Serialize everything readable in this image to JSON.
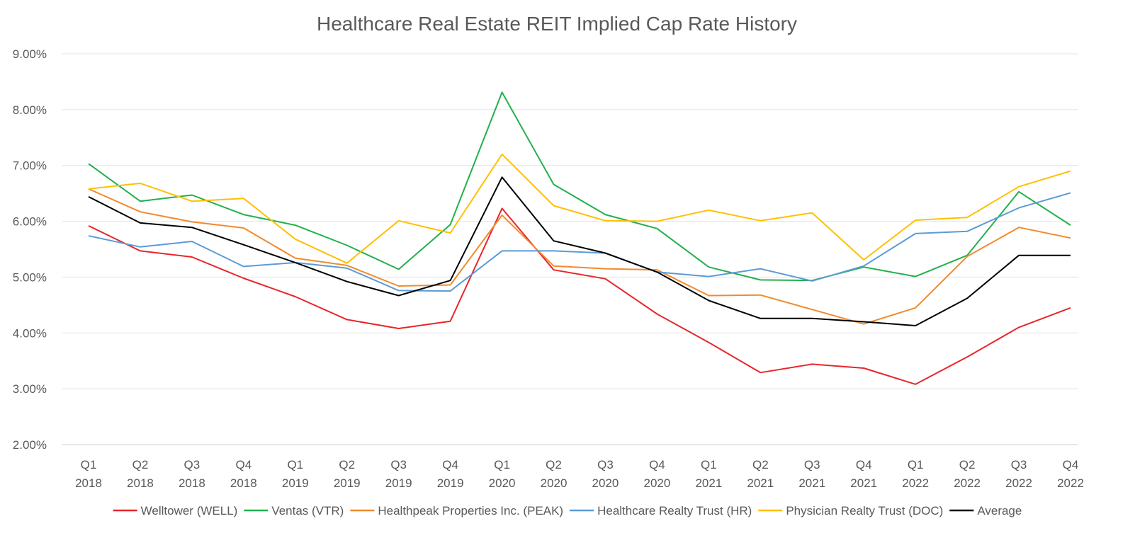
{
  "chart_data": {
    "type": "line",
    "title": "Healthcare Real Estate REIT Implied Cap Rate History",
    "xlabel": "",
    "ylabel": "",
    "categories": [
      [
        "Q1",
        "2018"
      ],
      [
        "Q2",
        "2018"
      ],
      [
        "Q3",
        "2018"
      ],
      [
        "Q4",
        "2018"
      ],
      [
        "Q1",
        "2019"
      ],
      [
        "Q2",
        "2019"
      ],
      [
        "Q3",
        "2019"
      ],
      [
        "Q4",
        "2019"
      ],
      [
        "Q1",
        "2020"
      ],
      [
        "Q2",
        "2020"
      ],
      [
        "Q3",
        "2020"
      ],
      [
        "Q4",
        "2020"
      ],
      [
        "Q1",
        "2021"
      ],
      [
        "Q2",
        "2021"
      ],
      [
        "Q3",
        "2021"
      ],
      [
        "Q4",
        "2021"
      ],
      [
        "Q1",
        "2022"
      ],
      [
        "Q2",
        "2022"
      ],
      [
        "Q3",
        "2022"
      ],
      [
        "Q4",
        "2022"
      ]
    ],
    "ylim": [
      0.02,
      0.09
    ],
    "yticks": [
      0.02,
      0.03,
      0.04,
      0.05,
      0.06,
      0.07,
      0.08,
      0.09
    ],
    "ytick_labels": [
      "2.00%",
      "3.00%",
      "4.00%",
      "5.00%",
      "6.00%",
      "7.00%",
      "8.00%",
      "9.00%"
    ],
    "grid": true,
    "legend_position": "bottom",
    "series": [
      {
        "name": "Welltower (WELL)",
        "color": "#e8262b",
        "values": [
          0.0592,
          0.0547,
          0.0536,
          0.0498,
          0.0465,
          0.0424,
          0.0408,
          0.0421,
          0.0623,
          0.0513,
          0.0497,
          0.0434,
          0.0383,
          0.0329,
          0.0344,
          0.0337,
          0.0308,
          0.0357,
          0.041,
          0.0445
        ]
      },
      {
        "name": "Ventas (VTR)",
        "color": "#22b04b",
        "values": [
          0.0703,
          0.0636,
          0.0647,
          0.0612,
          0.0593,
          0.0557,
          0.0514,
          0.0594,
          0.0831,
          0.0666,
          0.0612,
          0.0587,
          0.0518,
          0.0495,
          0.0494,
          0.0518,
          0.0501,
          0.0539,
          0.0653,
          0.0593
        ]
      },
      {
        "name": "Healthpeak Properties Inc. (PEAK)",
        "color": "#f28a2c",
        "values": [
          0.0658,
          0.0617,
          0.0599,
          0.0588,
          0.0534,
          0.0521,
          0.0484,
          0.0486,
          0.0611,
          0.052,
          0.0515,
          0.0513,
          0.0467,
          0.0468,
          0.0442,
          0.0416,
          0.0445,
          0.0537,
          0.0589,
          0.057
        ]
      },
      {
        "name": "Healthcare Realty Trust (HR)",
        "color": "#5b9bd5",
        "values": [
          0.0574,
          0.0554,
          0.0564,
          0.0519,
          0.0526,
          0.0516,
          0.0476,
          0.0475,
          0.0547,
          0.0547,
          0.0543,
          0.0509,
          0.0501,
          0.0515,
          0.0493,
          0.052,
          0.0578,
          0.0582,
          0.0624,
          0.0651
        ]
      },
      {
        "name": "Physician Realty Trust (DOC)",
        "color": "#ffc000",
        "values": [
          0.0658,
          0.0668,
          0.0636,
          0.0641,
          0.0568,
          0.0525,
          0.0601,
          0.0579,
          0.072,
          0.0628,
          0.0601,
          0.06,
          0.062,
          0.0601,
          0.0615,
          0.0531,
          0.0602,
          0.0607,
          0.0662,
          0.069
        ]
      },
      {
        "name": "Average",
        "color": "#000000",
        "values": [
          0.0644,
          0.0597,
          0.0589,
          0.0558,
          0.0526,
          0.0492,
          0.0467,
          0.0494,
          0.0679,
          0.0565,
          0.0543,
          0.0509,
          0.0458,
          0.0426,
          0.0426,
          0.042,
          0.0413,
          0.0462,
          0.0539,
          0.0539
        ]
      }
    ]
  }
}
